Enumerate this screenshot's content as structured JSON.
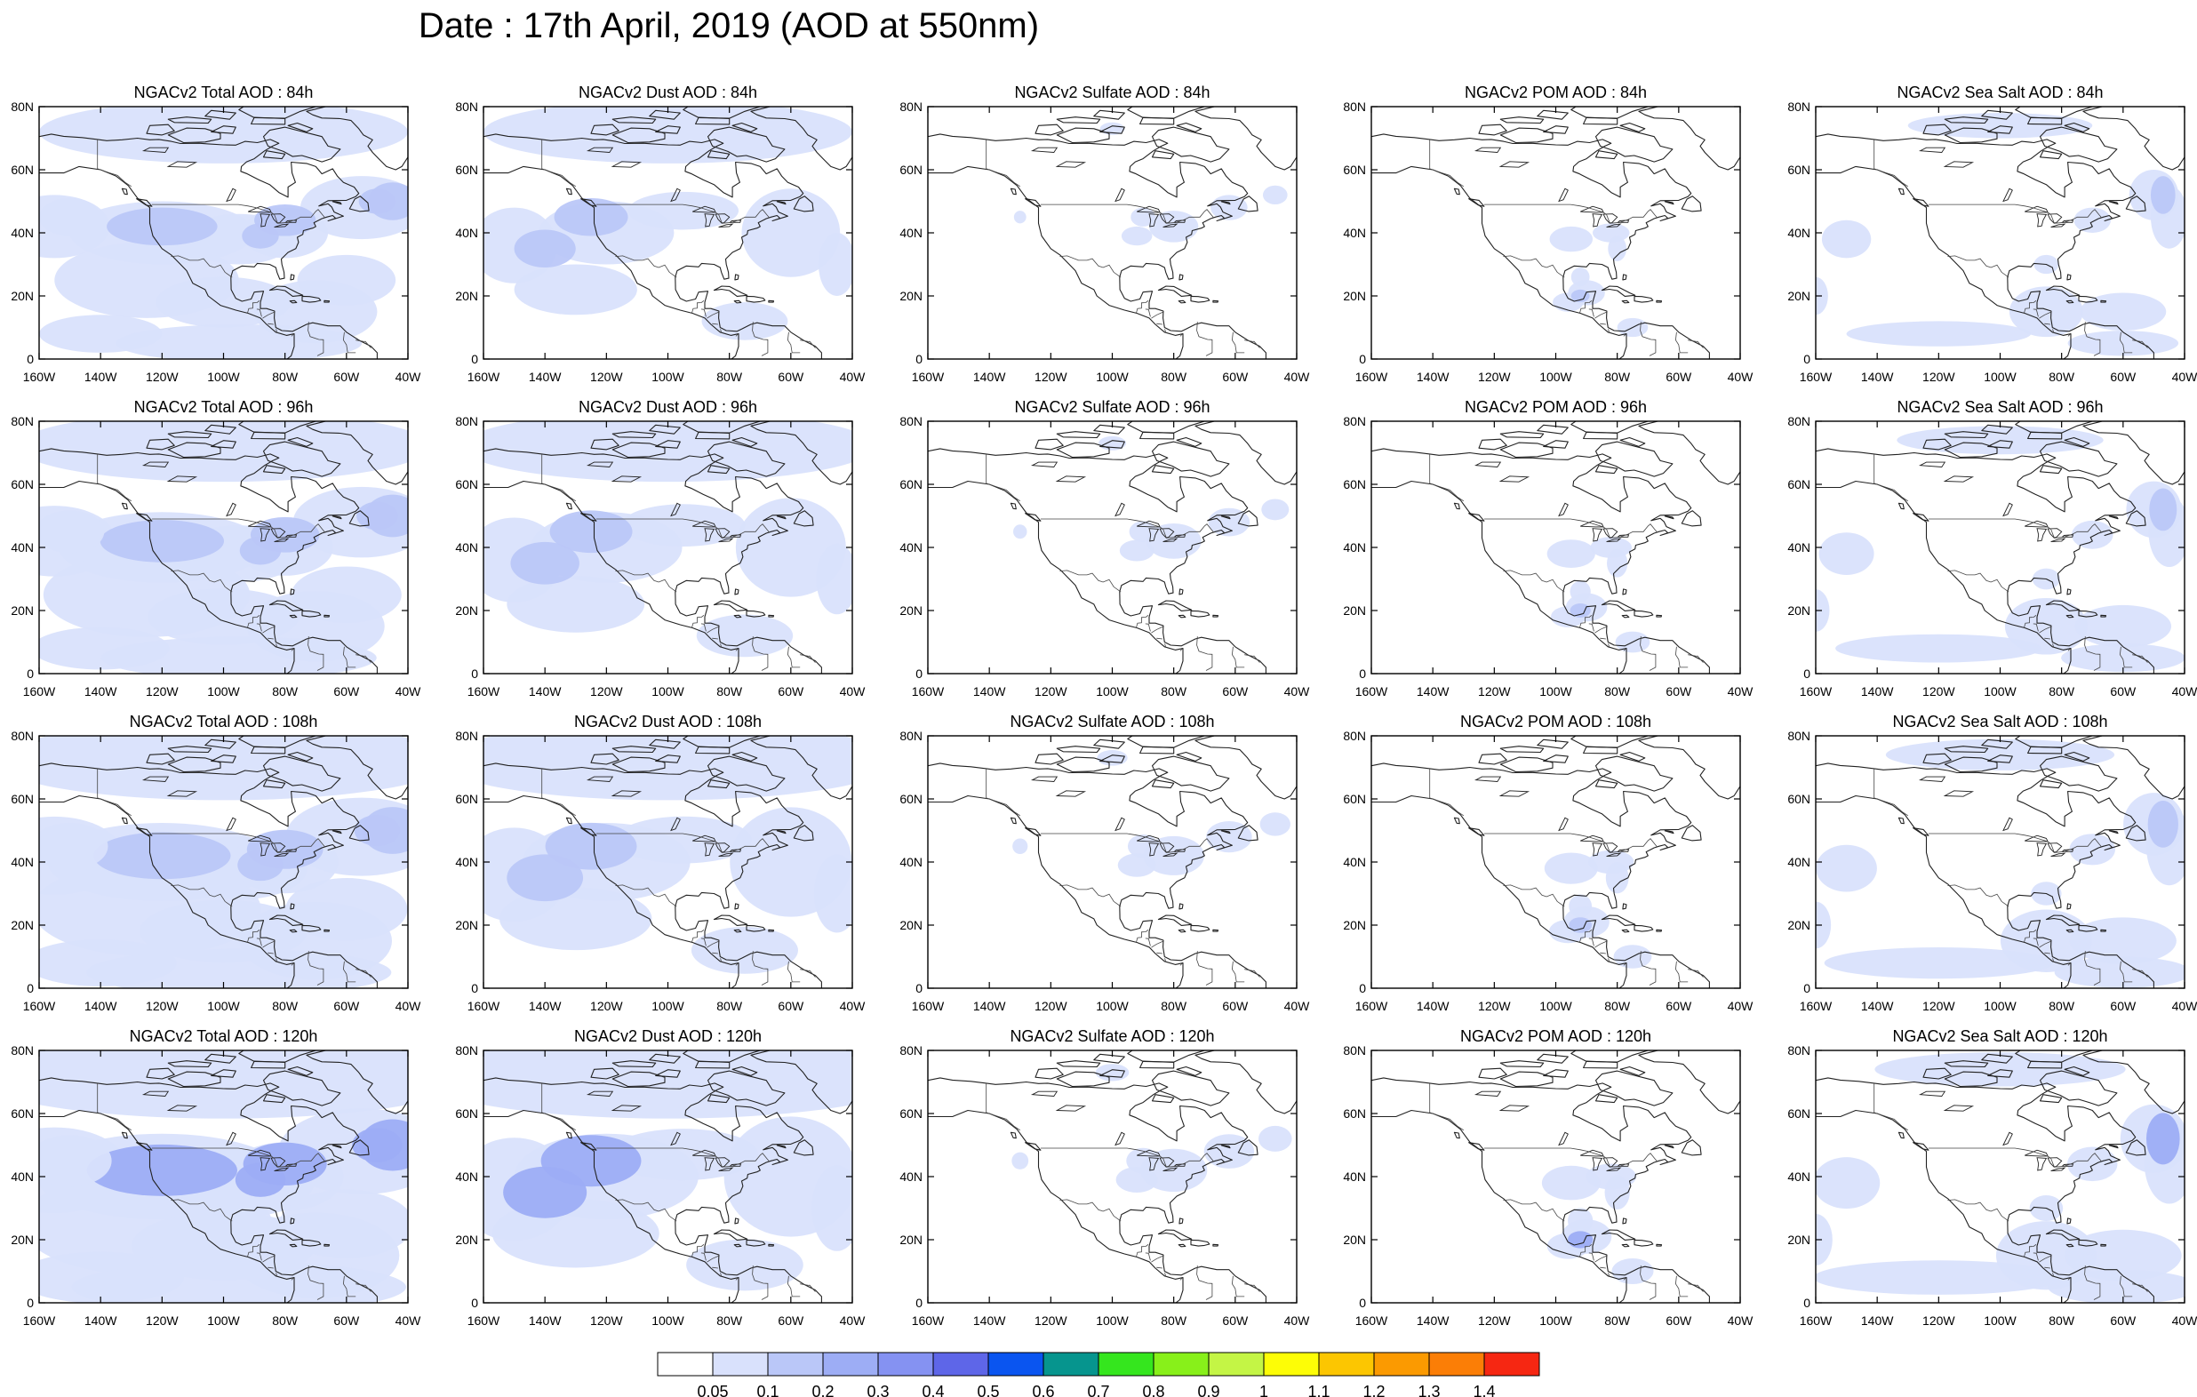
{
  "title": "Date : 17th April, 2019 (AOD at 550nm)",
  "axes": {
    "y_ticks": [
      "80N",
      "60N",
      "40N",
      "20N",
      "0"
    ],
    "x_ticks": [
      "160W",
      "140W",
      "120W",
      "100W",
      "80W",
      "60W",
      "40W"
    ]
  },
  "species": [
    {
      "id": "total",
      "level": 0.13
    },
    {
      "id": "dust",
      "level": 0.08
    },
    {
      "id": "sulfate",
      "level": 0.02
    },
    {
      "id": "pom",
      "level": 0.03
    },
    {
      "id": "seasalt",
      "level": 0.06
    }
  ],
  "panels": [
    [
      "NGACv2 Total AOD : 84h",
      "NGACv2 Dust AOD : 84h",
      "NGACv2 Sulfate AOD : 84h",
      "NGACv2 POM AOD : 84h",
      "NGACv2 Sea Salt AOD : 84h"
    ],
    [
      "NGACv2 Total AOD : 96h",
      "NGACv2 Dust AOD : 96h",
      "NGACv2 Sulfate AOD : 96h",
      "NGACv2 POM AOD : 96h",
      "NGACv2 Sea Salt AOD : 96h"
    ],
    [
      "NGACv2 Total AOD : 108h",
      "NGACv2 Dust AOD : 108h",
      "NGACv2 Sulfate AOD : 108h",
      "NGACv2 POM AOD : 108h",
      "NGACv2 Sea Salt AOD : 108h"
    ],
    [
      "NGACv2 Total AOD : 120h",
      "NGACv2 Dust AOD : 120h",
      "NGACv2 Sulfate AOD : 120h",
      "NGACv2 POM AOD : 120h",
      "NGACv2 Sea Salt  AOD : 120h"
    ]
  ],
  "colorbar": {
    "labels": [
      "0.05",
      "0.1",
      "0.2",
      "0.3",
      "0.4",
      "0.5",
      "0.6",
      "0.7",
      "0.8",
      "0.9",
      "1",
      "1.1",
      "1.2",
      "1.3",
      "1.4"
    ],
    "colors": [
      "#ffffff",
      "#d9e1fc",
      "#bac7f8",
      "#9dadf5",
      "#8592f2",
      "#5e66e8",
      "#0a55f0",
      "#06958e",
      "#35e61e",
      "#88f01a",
      "#c4f545",
      "#fdfd06",
      "#fcc601",
      "#fb9a01",
      "#fb7e06",
      "#f62712"
    ]
  },
  "colors": {
    "coast": "#222222",
    "frame": "#000000",
    "light_blue": "#d9e1fc",
    "mid_blue": "#bac7f8",
    "strong_blue": "#9dadf5"
  }
}
